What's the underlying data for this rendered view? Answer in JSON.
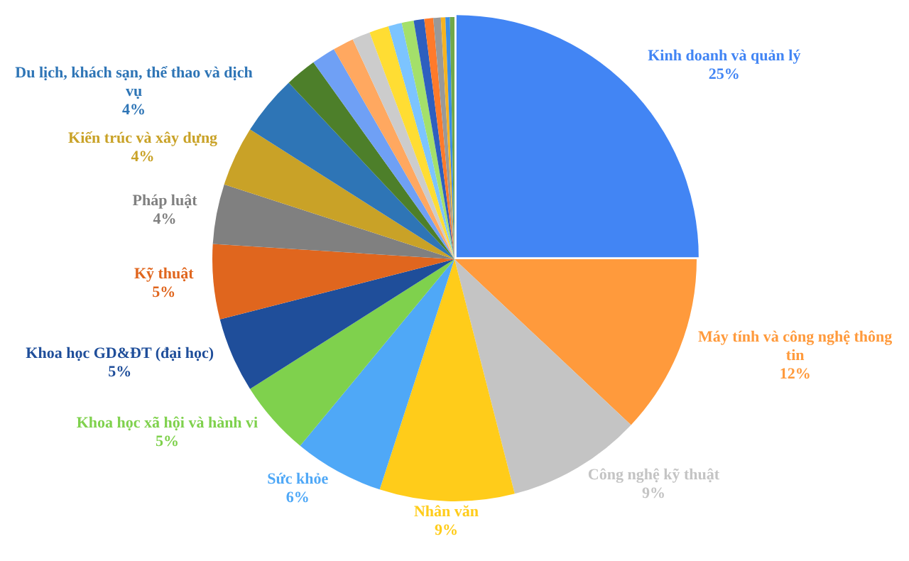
{
  "chart_data": {
    "type": "pie",
    "categories": [
      "Kinh doanh và quản lý",
      "Máy tính và công nghệ thông tin",
      "Công nghệ kỹ thuật",
      "Nhân văn",
      "Sức khỏe",
      "Khoa học xã hội và hành vi",
      "Khoa học GD&ĐT (đại học)",
      "Kỹ thuật",
      "Pháp luật",
      "Kiến trúc và xây dựng",
      "Du lịch, khách sạn, thể thao và dịch vụ",
      null,
      null,
      null,
      null,
      null,
      null,
      null,
      null,
      null,
      null,
      null,
      null,
      null
    ],
    "values": [
      25,
      12,
      9,
      9,
      6,
      5,
      5,
      5,
      4,
      4,
      4,
      2.1,
      1.6,
      1.4,
      1.2,
      1.3,
      0.9,
      0.8,
      0.7,
      0.6,
      0.5,
      0.3,
      0.3,
      0.3
    ],
    "value_labels": [
      "25%",
      "12%",
      "9%",
      "9%",
      "6%",
      "5%",
      "5%",
      "5%",
      "4%",
      "4%",
      "4%",
      null,
      null,
      null,
      null,
      null,
      null,
      null,
      null,
      null,
      null,
      null,
      null,
      null
    ],
    "colors": [
      "#4285f4",
      "#ff9a3c",
      "#c4c4c4",
      "#ffcc1a",
      "#4fa8f7",
      "#7fd14d",
      "#1f4e9a",
      "#e0661e",
      "#808080",
      "#c9a227",
      "#2e75b6",
      "#4d7f2a",
      "#6fa0f5",
      "#ffa860",
      "#cccccc",
      "#ffdd33",
      "#7cc4ff",
      "#a4e06a",
      "#2e5fbf",
      "#ff7a2a",
      "#999999",
      "#f5b321",
      "#3a8ee6",
      "#70a84a"
    ],
    "legend": false
  }
}
